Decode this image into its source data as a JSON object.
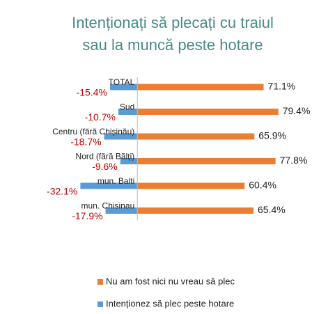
{
  "chart_data": {
    "type": "diverging_bar",
    "title": [
      "Intenționați  să plecați cu traiul",
      "sau la muncă peste hotare"
    ],
    "categories": [
      "TOTAL",
      "Sud",
      "Centru (fără Chișinău)",
      "Nord (fără Bălți)",
      "mun. Balti",
      "mun. Chisinau"
    ],
    "series": [
      {
        "name": "Nu am fost nici nu vreau să plec",
        "color": "#ED7D31",
        "label_color": "#222222",
        "values": [
          71.1,
          79.4,
          65.9,
          77.8,
          60.4,
          65.4
        ],
        "value_labels": [
          "71.1%",
          "79.4%",
          "65.9%",
          "77.8%",
          "60.4%",
          "65.4%"
        ]
      },
      {
        "name": "Intenționez să plec peste hotare",
        "color": "#5B9BD5",
        "label_color": "#C00000",
        "values": [
          -15.4,
          -10.7,
          -18.7,
          -9.6,
          -32.1,
          -17.9
        ],
        "value_labels": [
          "-15.4%",
          "-10.7%",
          "-18.7%",
          "-9.6%",
          "-32.1%",
          "-17.9%"
        ]
      }
    ],
    "xlim": [
      -35,
      85
    ]
  }
}
